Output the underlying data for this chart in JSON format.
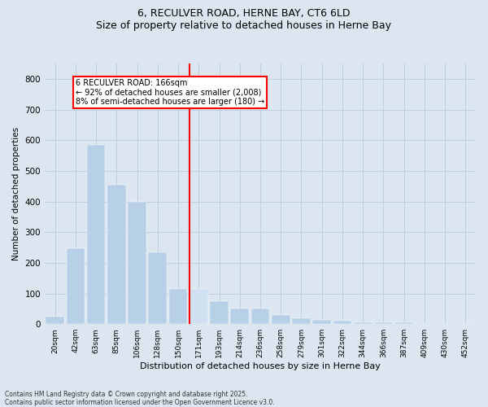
{
  "title": "6, RECULVER ROAD, HERNE BAY, CT6 6LD",
  "subtitle": "Size of property relative to detached houses in Herne Bay",
  "xlabel": "Distribution of detached houses by size in Herne Bay",
  "ylabel": "Number of detached properties",
  "bar_labels": [
    "20sqm",
    "42sqm",
    "63sqm",
    "85sqm",
    "106sqm",
    "128sqm",
    "150sqm",
    "171sqm",
    "193sqm",
    "214sqm",
    "236sqm",
    "258sqm",
    "279sqm",
    "301sqm",
    "322sqm",
    "344sqm",
    "366sqm",
    "387sqm",
    "409sqm",
    "430sqm",
    "452sqm"
  ],
  "bar_values": [
    25,
    248,
    585,
    455,
    400,
    235,
    115,
    115,
    75,
    50,
    50,
    30,
    20,
    15,
    10,
    7,
    5,
    5,
    3,
    3,
    0
  ],
  "bar_color": "#b8cfe8",
  "bar_edge_color": "#b8cfe8",
  "highlight_bar_index": 7,
  "highlight_bar_color": "#d0e0f0",
  "vline_color": "red",
  "annotation_text": "6 RECULVER ROAD: 166sqm\n← 92% of detached houses are smaller (2,008)\n8% of semi-detached houses are larger (180) →",
  "annotation_box_color": "white",
  "annotation_border_color": "red",
  "grid_color": "#c0cfe0",
  "background_color": "#dce6f0",
  "plot_bg_color": "#dce6f0",
  "ylim": [
    0,
    850
  ],
  "yticks": [
    0,
    100,
    200,
    300,
    400,
    500,
    600,
    700,
    800
  ],
  "footnote1": "Contains HM Land Registry data © Crown copyright and database right 2025.",
  "footnote2": "Contains public sector information licensed under the Open Government Licence v3.0."
}
